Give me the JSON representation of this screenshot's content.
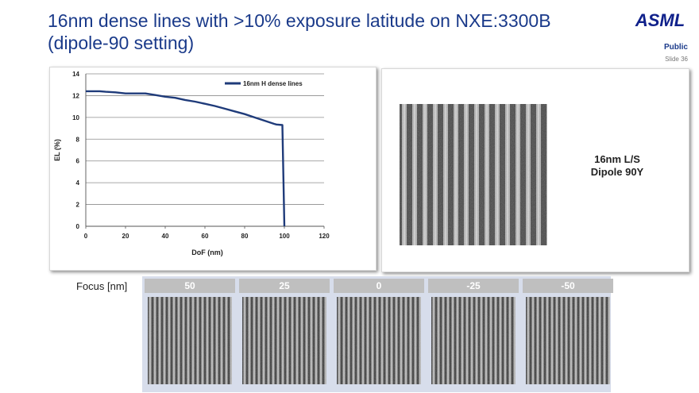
{
  "slide": {
    "title_line1": "16nm dense lines with >10% exposure latitude on NXE:3300B",
    "title_line2": "(dipole-90 setting)",
    "logo_text": "ASML",
    "classification": "Public",
    "slide_number": "Slide 36"
  },
  "chart_data": {
    "type": "line",
    "title": "",
    "xlabel": "DoF (nm)",
    "ylabel": "EL (%)",
    "xlim": [
      0,
      120
    ],
    "ylim": [
      0,
      14
    ],
    "xticks": [
      0,
      20,
      40,
      60,
      80,
      100,
      120
    ],
    "yticks": [
      0,
      2,
      4,
      6,
      8,
      10,
      12,
      14
    ],
    "grid": "horizontal",
    "legend_position": "top-right",
    "series": [
      {
        "name": "16nm H dense lines",
        "color": "#1f3b7a",
        "x": [
          0,
          7,
          10,
          15,
          20,
          30,
          35,
          40,
          45,
          50,
          55,
          60,
          65,
          70,
          75,
          80,
          85,
          90,
          95,
          96,
          99,
          100
        ],
        "y": [
          12.4,
          12.4,
          12.35,
          12.3,
          12.2,
          12.2,
          12.05,
          11.9,
          11.8,
          11.6,
          11.45,
          11.25,
          11.05,
          10.8,
          10.55,
          10.3,
          10.0,
          9.7,
          9.4,
          9.35,
          9.3,
          0.0
        ]
      }
    ]
  },
  "sem_main": {
    "label_line1": "16nm L/S",
    "label_line2": "Dipole 90Y"
  },
  "focus_row": {
    "label": "Focus [nm]",
    "values": [
      "50",
      "25",
      "0",
      "-25",
      "-50"
    ]
  }
}
